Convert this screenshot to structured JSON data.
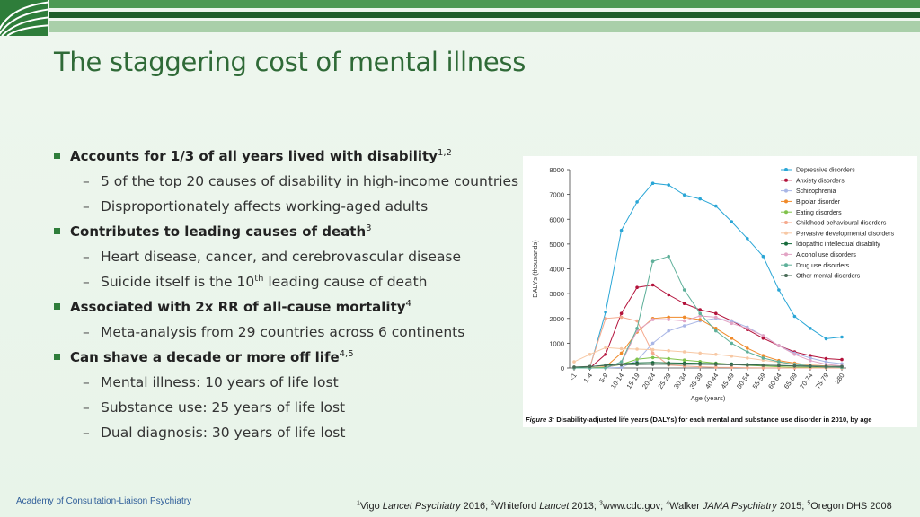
{
  "header": {
    "logo": "acp-logo"
  },
  "title": "The staggering cost of mental illness",
  "bullets": [
    {
      "text": "Accounts for 1/3 of all years lived with disability",
      "sup": "1,2",
      "subs": [
        {
          "text": "5 of the top 20 causes of disability in high-income countries"
        },
        {
          "text": "Disproportionately affects working-aged adults"
        }
      ]
    },
    {
      "text": "Contributes to leading causes of death",
      "sup": "3",
      "subs": [
        {
          "text": "Heart disease, cancer, and cerebrovascular disease"
        },
        {
          "pre": "Suicide itself is the 10",
          "sup": "th",
          "post": " leading cause of death"
        }
      ]
    },
    {
      "text": "Associated with 2x RR of all-cause mortality",
      "sup": "4",
      "subs": [
        {
          "text": "Meta-analysis from 29 countries across 6 continents"
        }
      ]
    },
    {
      "text": "Can shave a decade or more off life",
      "sup": "4,5",
      "subs": [
        {
          "text": "Mental illness: 10 years of life lost"
        },
        {
          "text": "Substance use: 25 years of life lost"
        },
        {
          "text": "Dual diagnosis: 30 years of life lost"
        }
      ]
    }
  ],
  "figure": {
    "caption_label": "Figure 3:",
    "caption_text": "Disability-adjusted life years (DALYs) for each mental and substance use disorder in 2010, by age"
  },
  "chart_data": {
    "type": "line",
    "xlabel": "Age (years)",
    "ylabel": "DALYs (thousands)",
    "ylim": [
      0,
      8000
    ],
    "yticks": [
      "0",
      "1000",
      "2000",
      "3000",
      "4000",
      "5000",
      "6000",
      "7000",
      "8000"
    ],
    "legend_position": "top-right",
    "categories": [
      "<1",
      "1-4",
      "5-9",
      "10-14",
      "15-19",
      "20-24",
      "25-29",
      "30-34",
      "35-39",
      "40-44",
      "45-49",
      "50-54",
      "55-59",
      "60-64",
      "65-69",
      "70-74",
      "75-79",
      "≥80"
    ],
    "series": [
      {
        "name": "Depressive disorders",
        "color": "#2aa6d6",
        "values": [
          0,
          0,
          2250,
          5550,
          6700,
          7450,
          7380,
          6980,
          6820,
          6530,
          5900,
          5220,
          4500,
          3150,
          2080,
          1600,
          1180,
          1250
        ]
      },
      {
        "name": "Anxiety disorders",
        "color": "#b3123b",
        "values": [
          0,
          0,
          550,
          2200,
          3250,
          3350,
          2950,
          2600,
          2350,
          2200,
          1900,
          1550,
          1200,
          900,
          650,
          500,
          380,
          340
        ]
      },
      {
        "name": "Schizophrenia",
        "color": "#a9b6e6",
        "values": [
          0,
          0,
          0,
          20,
          300,
          1000,
          1500,
          1700,
          1900,
          2000,
          1900,
          1650,
          1300,
          900,
          600,
          400,
          250,
          170
        ]
      },
      {
        "name": "Bipolar disorder",
        "color": "#f08a2a",
        "values": [
          0,
          0,
          50,
          600,
          1450,
          2000,
          2050,
          2050,
          1950,
          1600,
          1200,
          800,
          500,
          300,
          200,
          120,
          80,
          50
        ]
      },
      {
        "name": "Eating disorders",
        "color": "#7fc24a",
        "values": [
          0,
          0,
          30,
          150,
          350,
          420,
          380,
          320,
          260,
          200,
          150,
          110,
          80,
          50,
          30,
          20,
          10,
          5
        ]
      },
      {
        "name": "Childhood behavioural disorders",
        "color": "#f5a98d",
        "values": [
          0,
          50,
          2000,
          2050,
          1900,
          600,
          120,
          80,
          50,
          30,
          20,
          10,
          5,
          5,
          0,
          0,
          0,
          0
        ]
      },
      {
        "name": "Pervasive developmental disorders",
        "color": "#f7c8a4",
        "values": [
          250,
          550,
          820,
          780,
          760,
          740,
          700,
          650,
          600,
          550,
          480,
          400,
          320,
          230,
          160,
          110,
          70,
          40
        ]
      },
      {
        "name": "Idiopathic intellectual disability",
        "color": "#176b3c",
        "values": [
          20,
          50,
          120,
          170,
          210,
          220,
          210,
          200,
          190,
          175,
          160,
          140,
          120,
          100,
          80,
          60,
          40,
          30
        ]
      },
      {
        "name": "Alcohol use disorders",
        "color": "#e2a3c4",
        "values": [
          0,
          0,
          0,
          200,
          1500,
          1950,
          1950,
          1900,
          2100,
          2050,
          1800,
          1600,
          1300,
          900,
          550,
          300,
          150,
          80
        ]
      },
      {
        "name": "Drug use disorders",
        "color": "#5fb09a",
        "values": [
          0,
          0,
          0,
          250,
          1600,
          4300,
          4500,
          3150,
          2200,
          1500,
          1000,
          650,
          400,
          250,
          150,
          80,
          50,
          30
        ]
      },
      {
        "name": "Other mental disorders",
        "color": "#4a6b57",
        "values": [
          40,
          60,
          100,
          130,
          140,
          150,
          150,
          150,
          150,
          140,
          130,
          120,
          110,
          100,
          90,
          80,
          70,
          60
        ]
      }
    ]
  },
  "footer": {
    "left": "Academy of Consultation-Liaison Psychiatry",
    "refs": [
      {
        "sup": "1",
        "t": "Vigo "
      },
      {
        "i": "Lancet Psychiatry"
      },
      {
        "t": " 2016; "
      },
      {
        "sup": "2",
        "t": "Whiteford "
      },
      {
        "i": "Lancet"
      },
      {
        "t": " 2013; "
      },
      {
        "sup": "3",
        "t": "www.cdc.gov; "
      },
      {
        "sup": "4",
        "t": "Walker "
      },
      {
        "i": "JAMA Psychiatry"
      },
      {
        "t": " 2015; "
      },
      {
        "sup": "5",
        "t": "Oregon DHS 2008"
      }
    ]
  }
}
